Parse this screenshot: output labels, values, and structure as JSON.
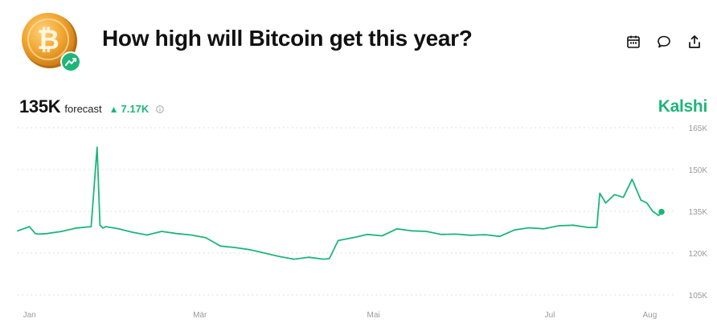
{
  "header": {
    "title": "How high will Bitcoin get this year?",
    "actions": [
      {
        "name": "calendar-icon"
      },
      {
        "name": "comment-icon"
      },
      {
        "name": "share-icon"
      }
    ]
  },
  "stats": {
    "forecast_value": "135K",
    "forecast_label": "forecast",
    "change_value": "7.17K",
    "change_direction": "up",
    "info_icon": "info-icon"
  },
  "brand": {
    "name": "Kalshi",
    "color": "#1db679"
  },
  "colors": {
    "accent": "#1db679",
    "coin": "#f0a531",
    "text": "#111111",
    "grid": "#d6d6d6",
    "axis_text": "#9a9a9a"
  },
  "chart_data": {
    "type": "line",
    "title": "",
    "xlabel": "",
    "ylabel": "",
    "x_ticks": [
      "Jan",
      "Mär",
      "Mai",
      "Jul",
      "Aug"
    ],
    "y_ticks": [
      "165K",
      "150K",
      "135K",
      "120K",
      "105K"
    ],
    "ylim": [
      104000,
      166000
    ],
    "grid": true,
    "legend": "none",
    "series": [
      {
        "color": "#1db679",
        "x": [
          "2025-01-01",
          "2025-01-05",
          "2025-01-07",
          "2025-01-08",
          "2025-01-11",
          "2025-01-16",
          "2025-01-21",
          "2025-01-26",
          "2025-01-28",
          "2025-01-29",
          "2025-01-30",
          "2025-01-31",
          "2025-02-04",
          "2025-02-09",
          "2025-02-14",
          "2025-02-19",
          "2025-02-24",
          "2025-03-01",
          "2025-03-06",
          "2025-03-11",
          "2025-03-16",
          "2025-03-21",
          "2025-03-26",
          "2025-03-31",
          "2025-04-05",
          "2025-04-10",
          "2025-04-15",
          "2025-04-17",
          "2025-04-20",
          "2025-04-25",
          "2025-04-30",
          "2025-05-05",
          "2025-05-10",
          "2025-05-15",
          "2025-05-20",
          "2025-05-25",
          "2025-05-30",
          "2025-06-04",
          "2025-06-09",
          "2025-06-14",
          "2025-06-19",
          "2025-06-24",
          "2025-06-29",
          "2025-07-04",
          "2025-07-09",
          "2025-07-14",
          "2025-07-17",
          "2025-07-18",
          "2025-07-20",
          "2025-07-23",
          "2025-07-26",
          "2025-07-29",
          "2025-08-01",
          "2025-08-03",
          "2025-08-05",
          "2025-08-07",
          "2025-08-08"
        ],
        "y": [
          128000,
          129500,
          127000,
          126800,
          127000,
          127800,
          129000,
          129500,
          158000,
          130000,
          129000,
          129500,
          128800,
          127500,
          126500,
          127800,
          127000,
          126500,
          125500,
          122500,
          122000,
          121200,
          120000,
          118800,
          117800,
          118500,
          117800,
          118000,
          124500,
          125500,
          126700,
          126200,
          128700,
          128000,
          127800,
          126700,
          126800,
          126400,
          126600,
          126000,
          128300,
          129100,
          128700,
          129800,
          130000,
          129200,
          129200,
          141500,
          138000,
          141000,
          140000,
          146500,
          139000,
          138000,
          135000,
          133500,
          134800
        ]
      }
    ]
  }
}
